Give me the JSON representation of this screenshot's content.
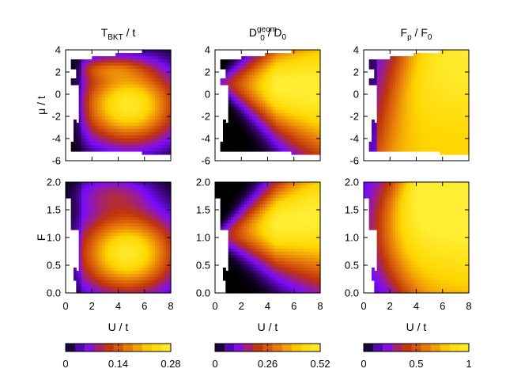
{
  "chart_data": [
    {
      "type": "heatmap",
      "panel": "top-left",
      "title": "T_BKT / t",
      "title_parts": {
        "base": "T",
        "sub": "BKT",
        "rest": " / t"
      },
      "xlabel": "",
      "ylabel": "μ / t",
      "xlim": [
        0,
        8
      ],
      "ylim": [
        -6,
        4
      ],
      "yticks": [
        "4",
        "2",
        "0",
        "-2",
        "-4",
        "-6"
      ],
      "xticks": [],
      "colormap": "black-purple-orange-yellow",
      "max_region": {
        "U": 4.7,
        "mu": -1.0
      }
    },
    {
      "type": "heatmap",
      "panel": "top-middle",
      "title": "D0geom / D0",
      "title_parts": {
        "base": "D",
        "sub": "0",
        "sup": "geom",
        "mid": " / D",
        "sub2": "0"
      },
      "xlabel": "",
      "ylabel": "",
      "xlim": [
        0,
        8
      ],
      "ylim": [
        -6,
        4
      ],
      "yticks": [
        "4",
        "2",
        "0",
        "-2",
        "-4",
        "-6"
      ],
      "xticks": [],
      "colormap": "black-purple-orange-yellow",
      "max_region": {
        "U": 8,
        "mu": 1.0
      }
    },
    {
      "type": "heatmap",
      "panel": "top-right",
      "title": "Fp / F0",
      "title_parts": {
        "base": "F",
        "sub": "p",
        "mid": " / F",
        "sub2": "0"
      },
      "xlabel": "",
      "ylabel": "",
      "xlim": [
        0,
        8
      ],
      "ylim": [
        -6,
        4
      ],
      "yticks": [
        "4",
        "2",
        "0",
        "-2",
        "-4",
        "-6"
      ],
      "xticks": [],
      "colormap": "black-purple-orange-yellow",
      "max_region": {
        "U": 8,
        "mu": 3.0
      }
    },
    {
      "type": "heatmap",
      "panel": "bottom-left",
      "title": "",
      "xlabel": "U / t",
      "ylabel": "F",
      "xlim": [
        0,
        8
      ],
      "ylim": [
        0,
        2
      ],
      "yticks": [
        "2.0",
        "1.5",
        "1.0",
        "0.5",
        "0.0"
      ],
      "xticks": [
        "0",
        "2",
        "4",
        "6",
        "8"
      ],
      "colormap": "black-purple-orange-yellow",
      "max_region": {
        "U": 4.7,
        "F": 0.7
      }
    },
    {
      "type": "heatmap",
      "panel": "bottom-middle",
      "title": "",
      "xlabel": "U / t",
      "ylabel": "",
      "xlim": [
        0,
        8
      ],
      "ylim": [
        0,
        2
      ],
      "yticks": [
        "2.0",
        "1.5",
        "1.0",
        "0.5",
        "0.0"
      ],
      "xticks": [
        "0",
        "2",
        "4",
        "6",
        "8"
      ],
      "colormap": "black-purple-orange-yellow",
      "max_region": {
        "U": 8,
        "F": 1.4
      }
    },
    {
      "type": "heatmap",
      "panel": "bottom-right",
      "title": "",
      "xlabel": "U / t",
      "ylabel": "",
      "xlim": [
        0,
        8
      ],
      "ylim": [
        0,
        2
      ],
      "yticks": [
        "2.0",
        "1.5",
        "1.0",
        "0.5",
        "0.0"
      ],
      "xticks": [
        "0",
        "2",
        "4",
        "6",
        "8"
      ],
      "colormap": "black-purple-orange-yellow",
      "max_region": {
        "U": 8,
        "F": 1.9
      }
    }
  ],
  "colorbars": [
    {
      "name": "colorbar-tbkt",
      "range": [
        0,
        0.28
      ],
      "tick_labels": [
        "0",
        "0.14",
        "0.28"
      ],
      "tick_values": [
        0,
        0.14,
        0.28
      ]
    },
    {
      "name": "colorbar-dgeom",
      "range": [
        0,
        0.52
      ],
      "tick_labels": [
        "0",
        "0.26",
        "0.52"
      ],
      "tick_values": [
        0,
        0.26,
        0.52
      ]
    },
    {
      "name": "colorbar-fp",
      "range": [
        0,
        1
      ],
      "tick_labels": [
        "0",
        "0.5",
        "1"
      ],
      "tick_values": [
        0,
        0.5,
        1
      ]
    }
  ],
  "colors": {
    "stops": [
      "#000000",
      "#7b0bff",
      "#c0330d",
      "#e87d0a",
      "#ffd500",
      "#ffee33"
    ],
    "white_region": "#ffffff",
    "frame": "#000000"
  }
}
